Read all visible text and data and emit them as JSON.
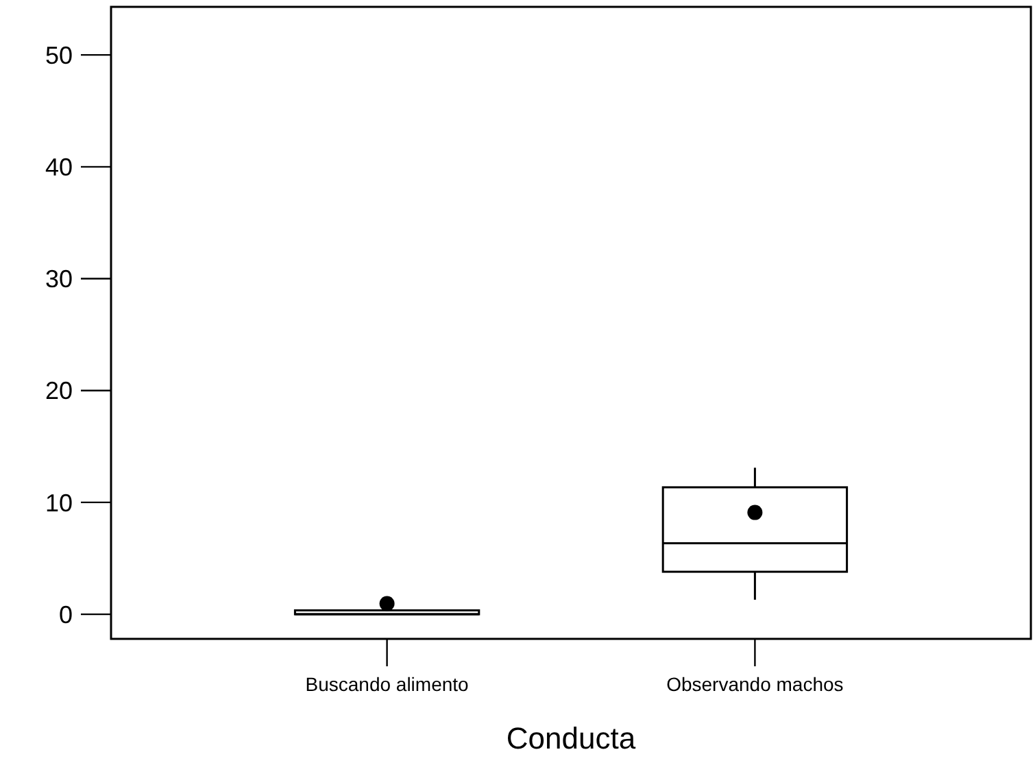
{
  "chart_data": {
    "type": "box",
    "xlabel": "Conducta",
    "categories": [
      "Buscando alimento",
      "Observando machos"
    ],
    "ylim": [
      -2.2,
      54.3
    ],
    "yticks": [
      0,
      10,
      20,
      30,
      40,
      50
    ],
    "grid": false,
    "color": "#000000",
    "boxes": [
      {
        "q1": 0,
        "median": 0,
        "q3": 0.35,
        "mean": 0.95
      },
      {
        "low": 1.3,
        "q1": 3.8,
        "median": 6.35,
        "q3": 11.35,
        "high": 13.1,
        "mean": 9.1
      }
    ]
  }
}
